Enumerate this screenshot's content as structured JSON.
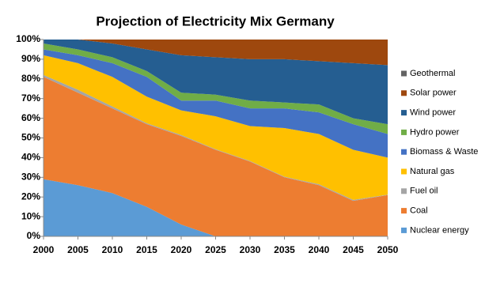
{
  "chart_data": {
    "type": "stacked_area",
    "title": "Projection of Electricity Mix Germany",
    "x": [
      2000,
      2005,
      2010,
      2015,
      2020,
      2025,
      2030,
      2035,
      2040,
      2045,
      2050
    ],
    "xlim": [
      2000,
      2050
    ],
    "xticks": [
      2000,
      2005,
      2010,
      2015,
      2020,
      2025,
      2030,
      2035,
      2040,
      2045,
      2050
    ],
    "ylim": [
      0,
      100
    ],
    "yticks": [
      {
        "value": 0,
        "label": "0%"
      },
      {
        "value": 10,
        "label": "10%"
      },
      {
        "value": 20,
        "label": "20%"
      },
      {
        "value": 30,
        "label": "30%"
      },
      {
        "value": 40,
        "label": "40%"
      },
      {
        "value": 50,
        "label": "50%"
      },
      {
        "value": 60,
        "label": "60%"
      },
      {
        "value": 70,
        "label": "70%"
      },
      {
        "value": 80,
        "label": "80%"
      },
      {
        "value": 90,
        "label": "90%"
      },
      {
        "value": 100,
        "label": "100%"
      }
    ],
    "grid": false,
    "series": [
      {
        "name": "Nuclear energy",
        "color": "#5b9bd5",
        "values": [
          29,
          26,
          22,
          15,
          6,
          0,
          0,
          0,
          0,
          0,
          0
        ]
      },
      {
        "name": "Coal",
        "color": "#ed7d31",
        "values": [
          52,
          47,
          43,
          42,
          45,
          44,
          38,
          30,
          26,
          18,
          21
        ]
      },
      {
        "name": "Fuel oil",
        "color": "#a5a5a5",
        "values": [
          1,
          1.5,
          1,
          0.5,
          0.5,
          0.3,
          0.3,
          0.3,
          0.5,
          0.5,
          0.2
        ]
      },
      {
        "name": "Natural gas",
        "color": "#ffc000",
        "values": [
          10,
          13.5,
          15,
          13.5,
          12.5,
          16.7,
          17.7,
          24.7,
          25.5,
          25.5,
          18.8
        ]
      },
      {
        "name": "Biomass & Waste",
        "color": "#4472c4",
        "values": [
          3,
          4,
          7,
          10,
          5,
          8,
          9,
          10,
          11,
          13,
          12
        ]
      },
      {
        "name": "Hydro power",
        "color": "#70ad47",
        "values": [
          3,
          3,
          3,
          3,
          4,
          3,
          4,
          3,
          4,
          3,
          5
        ]
      },
      {
        "name": "Wind power",
        "color": "#255e91",
        "values": [
          2,
          5,
          7,
          11,
          19,
          19,
          21,
          22,
          22,
          28,
          30
        ]
      },
      {
        "name": "Solar power",
        "color": "#9e480e",
        "values": [
          0,
          0,
          2,
          5,
          8,
          9,
          10,
          10,
          11,
          12,
          13
        ]
      },
      {
        "name": "Geothermal",
        "color": "#636363",
        "values": [
          0,
          0,
          0,
          0,
          0,
          0,
          0,
          0,
          0,
          0,
          0
        ]
      }
    ]
  }
}
